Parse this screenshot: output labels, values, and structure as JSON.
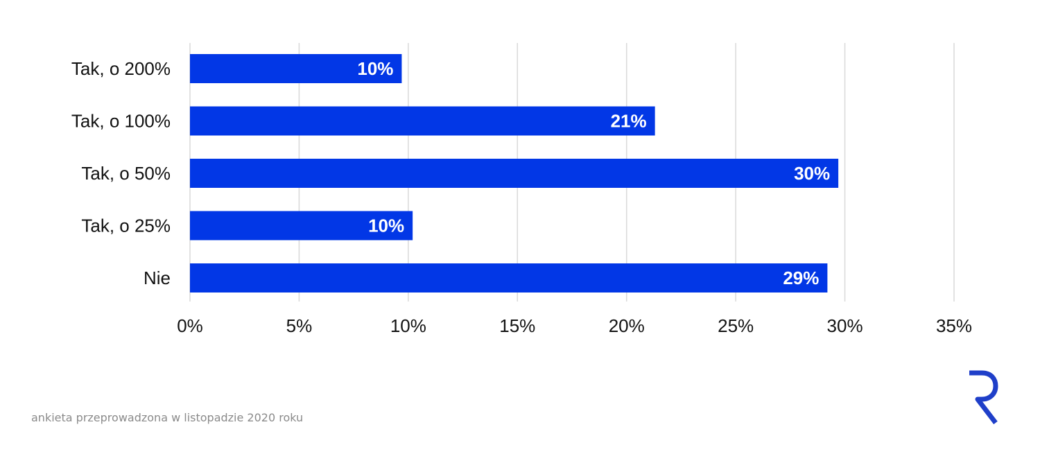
{
  "chart_data": {
    "type": "bar",
    "orientation": "horizontal",
    "title": "",
    "xlabel": "",
    "ylabel": "",
    "categories": [
      "Tak, o 200%",
      "Tak, o 100%",
      "Tak, o 50%",
      "Tak, o 25%",
      "Nie"
    ],
    "values": [
      9.7,
      21.3,
      29.7,
      10.2,
      29.2
    ],
    "data_labels": [
      "10%",
      "21%",
      "30%",
      "10%",
      "29%"
    ],
    "xlim": [
      0,
      35
    ],
    "xticks": [
      0,
      5,
      10,
      15,
      20,
      25,
      30,
      35
    ],
    "xtick_labels": [
      "0%",
      "5%",
      "10%",
      "15%",
      "20%",
      "25%",
      "30%",
      "35%"
    ],
    "grid": "vertical",
    "legend": "none",
    "bar_color": "#0237e6"
  },
  "footnote": "ankieta przeprowadzona w listopadzie 2020 roku",
  "logo": {
    "icon": "r-logo-icon",
    "color": "#1f3fc9"
  }
}
